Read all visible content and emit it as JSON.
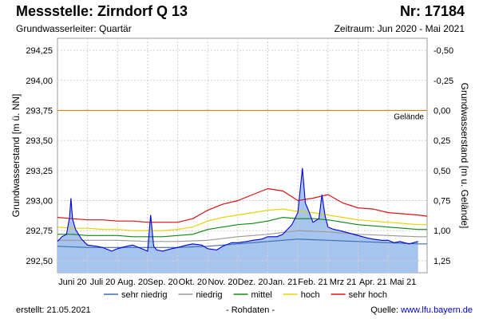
{
  "header": {
    "title": "Messstelle: Zirndorf Q 13",
    "nr": "Nr: 17184",
    "aquifer": "Grundwasserleiter: Quartär",
    "period": "Zeitraum: Jun 2020 - Mai 2021"
  },
  "footer": {
    "created": "erstellt:  21.05.2021",
    "raw": "- Rohdaten -",
    "source_label": "Quelle:",
    "source_url": "www.lfu.bayern.de"
  },
  "chart_data": {
    "type": "line",
    "ylabel": "Grundwasserstand [m ü. NN]",
    "ylabel_right": "Grundwasserstand [m u. Gelände]",
    "ylim": [
      292.4,
      294.35
    ],
    "y_ticks": [
      "294,25",
      "294,00",
      "293,75",
      "293,50",
      "293,25",
      "293,00",
      "292,75",
      "292,50"
    ],
    "y_tick_values": [
      294.25,
      294.0,
      293.75,
      293.5,
      293.25,
      293.0,
      292.75,
      292.5
    ],
    "right_ticks": [
      "-0,50",
      "-0,25",
      "0,00",
      "0,25",
      "0,50",
      "0,75",
      "1,00",
      "1,25"
    ],
    "ground_level": 293.75,
    "ground_label": "Gelände",
    "x_range": [
      0,
      12.3
    ],
    "x_ticks": [
      "Juni 20",
      "Juli 20",
      "Aug. 20",
      "Sep. 20",
      "Okt. 20",
      "Nov. 20",
      "Dez. 20",
      "Jan. 21",
      "Feb. 21",
      "Mrz 21",
      "Apr. 21",
      "Mai 21"
    ],
    "grid": true,
    "legend_position": "bottom",
    "legend": [
      {
        "name": "sehr niedrig",
        "color": "#3c6fb4"
      },
      {
        "name": "niedrig",
        "color": "#999999"
      },
      {
        "name": "mittel",
        "color": "#118811"
      },
      {
        "name": "hoch",
        "color": "#e6d200"
      },
      {
        "name": "sehr hoch",
        "color": "#dd1111"
      }
    ],
    "fill_color": "#a6c4ee",
    "measured_color": "#0000dd",
    "threshold_series": [
      {
        "name": "sehr hoch",
        "color": "#dd1111",
        "x": [
          0,
          0.5,
          1,
          1.5,
          2,
          2.5,
          3,
          3.5,
          4,
          4.5,
          5,
          5.5,
          6,
          6.5,
          7,
          7.5,
          8,
          8.5,
          9,
          9.5,
          10,
          10.5,
          11,
          11.5,
          12,
          12.3
        ],
        "y": [
          292.86,
          292.85,
          292.84,
          292.84,
          292.83,
          292.83,
          292.82,
          292.82,
          292.82,
          292.85,
          292.92,
          292.97,
          293.0,
          293.05,
          293.1,
          293.08,
          293.0,
          293.02,
          293.05,
          292.98,
          292.94,
          292.93,
          292.9,
          292.89,
          292.88,
          292.87
        ]
      },
      {
        "name": "hoch",
        "color": "#e6d200",
        "x": [
          0,
          0.5,
          1,
          1.5,
          2,
          2.5,
          3,
          3.5,
          4,
          4.5,
          5,
          5.5,
          6,
          6.5,
          7,
          7.5,
          8,
          8.5,
          9,
          9.5,
          10,
          10.5,
          11,
          11.5,
          12,
          12.3
        ],
        "y": [
          292.78,
          292.77,
          292.77,
          292.76,
          292.76,
          292.75,
          292.75,
          292.75,
          292.76,
          292.78,
          292.83,
          292.86,
          292.88,
          292.9,
          292.92,
          292.93,
          292.91,
          292.9,
          292.88,
          292.86,
          292.84,
          292.83,
          292.82,
          292.81,
          292.8,
          292.8
        ]
      },
      {
        "name": "mittel",
        "color": "#118811",
        "x": [
          0,
          0.5,
          1,
          1.5,
          2,
          2.5,
          3,
          3.5,
          4,
          4.5,
          5,
          5.5,
          6,
          6.5,
          7,
          7.5,
          8,
          8.5,
          9,
          9.5,
          10,
          10.5,
          11,
          11.5,
          12,
          12.3
        ],
        "y": [
          292.72,
          292.72,
          292.71,
          292.71,
          292.71,
          292.7,
          292.7,
          292.7,
          292.71,
          292.72,
          292.76,
          292.78,
          292.8,
          292.81,
          292.83,
          292.86,
          292.85,
          292.85,
          292.84,
          292.82,
          292.8,
          292.79,
          292.78,
          292.77,
          292.76,
          292.76
        ]
      },
      {
        "name": "niedrig",
        "color": "#999999",
        "x": [
          0,
          1,
          2,
          3,
          4,
          5,
          6,
          7,
          8,
          9,
          10,
          11,
          12,
          12.3
        ],
        "y": [
          292.67,
          292.67,
          292.67,
          292.66,
          292.66,
          292.67,
          292.7,
          292.72,
          292.75,
          292.74,
          292.72,
          292.71,
          292.7,
          292.7
        ]
      },
      {
        "name": "sehr niedrig",
        "color": "#3c6fb4",
        "x": [
          0,
          1,
          2,
          3,
          4,
          5,
          6,
          7,
          8,
          9,
          10,
          11,
          12,
          12.3
        ],
        "y": [
          292.62,
          292.61,
          292.61,
          292.61,
          292.61,
          292.62,
          292.64,
          292.66,
          292.68,
          292.67,
          292.66,
          292.65,
          292.64,
          292.64
        ]
      }
    ],
    "measured_series": {
      "name": "Rohdaten",
      "x": [
        0,
        0.15,
        0.3,
        0.4,
        0.45,
        0.5,
        0.6,
        0.8,
        1.0,
        1.3,
        1.5,
        1.8,
        2.0,
        2.3,
        2.5,
        2.8,
        3.0,
        3.1,
        3.2,
        3.3,
        3.5,
        3.8,
        4.0,
        4.3,
        4.5,
        4.8,
        5.0,
        5.3,
        5.5,
        5.8,
        6.0,
        6.3,
        6.5,
        6.8,
        7.0,
        7.3,
        7.5,
        7.8,
        8.0,
        8.15,
        8.25,
        8.35,
        8.5,
        8.7,
        8.8,
        8.9,
        9.0,
        9.2,
        9.4,
        9.7,
        10.0,
        10.3,
        10.5,
        10.8,
        11.0,
        11.2,
        11.4,
        11.7,
        12.0
      ],
      "y": [
        292.66,
        292.7,
        292.72,
        292.86,
        293.02,
        292.85,
        292.76,
        292.68,
        292.63,
        292.62,
        292.61,
        292.58,
        292.6,
        292.62,
        292.63,
        292.6,
        292.58,
        292.88,
        292.62,
        292.59,
        292.58,
        292.6,
        292.61,
        292.63,
        292.64,
        292.63,
        292.6,
        292.59,
        292.62,
        292.65,
        292.65,
        292.66,
        292.67,
        292.68,
        292.7,
        292.7,
        292.72,
        292.8,
        292.9,
        293.27,
        292.98,
        292.92,
        292.82,
        292.85,
        293.05,
        292.88,
        292.78,
        292.76,
        292.75,
        292.73,
        292.71,
        292.69,
        292.68,
        292.67,
        292.67,
        292.65,
        292.66,
        292.64,
        292.66
      ]
    }
  }
}
